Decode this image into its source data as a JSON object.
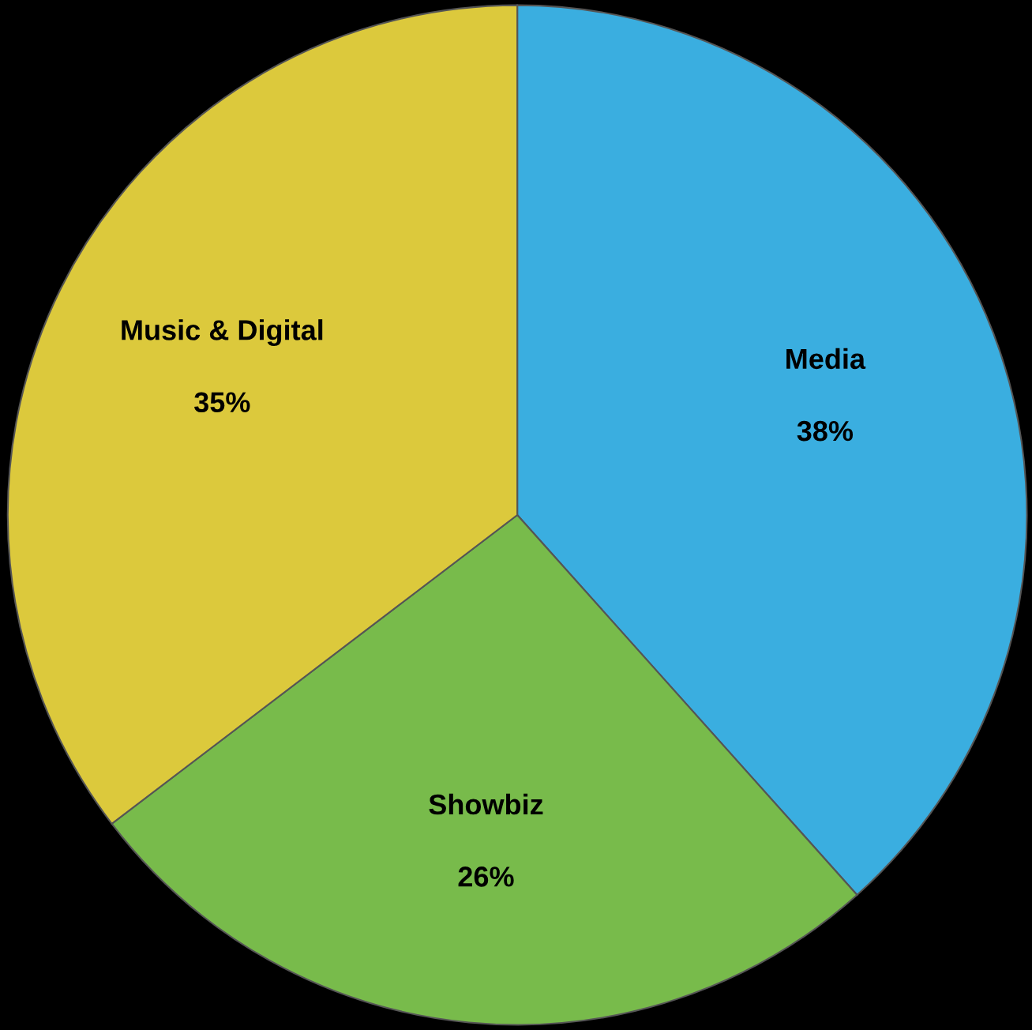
{
  "chart_data": {
    "type": "pie",
    "categories": [
      "Media",
      "Showbiz",
      "Music & Digital"
    ],
    "values": [
      38,
      26,
      35
    ],
    "colors": [
      "#3aaee0",
      "#78bb4b",
      "#dcc93c"
    ],
    "value_labels": [
      "38%",
      "26%",
      "35%"
    ]
  }
}
